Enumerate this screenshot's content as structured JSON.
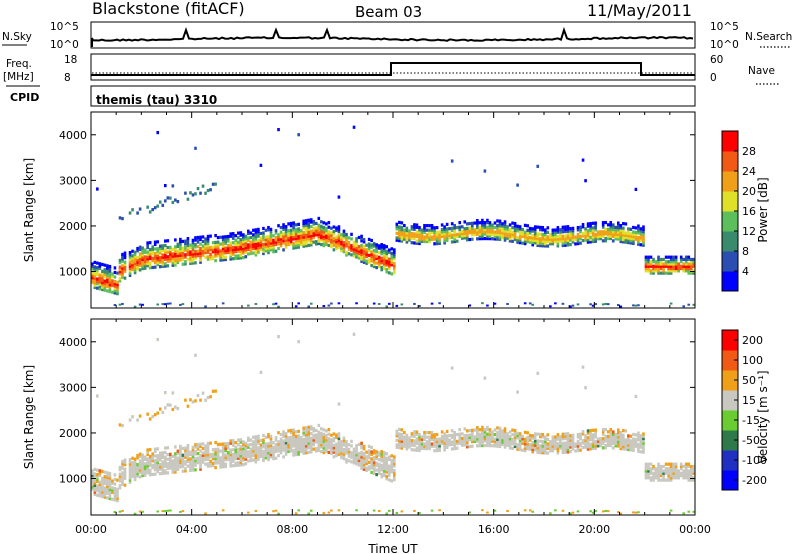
{
  "header": {
    "station": "Blackstone (fitACF)",
    "beam": "Beam 03",
    "date": "11/May/2011"
  },
  "strip_panels": {
    "nsky": {
      "label": "N.Sky",
      "tick_top": "10^5",
      "tick_bottom": "10^0"
    },
    "nsearch": {
      "label": "N.Search",
      "tick_top": "10^5",
      "tick_bottom": "10^0"
    },
    "freq": {
      "label": "Freq.",
      "unit": "[MHz]",
      "tick_top": "18",
      "tick_bottom": "8"
    },
    "nave": {
      "label": "Nave",
      "tick_top": "60",
      "tick_bottom": "0"
    },
    "cpid": {
      "label": "CPID",
      "value": "themis (tau) 3310"
    }
  },
  "chart_data": [
    {
      "type": "heatmap",
      "panel": "power",
      "xlabel": "",
      "ylabel": "Slant Range [km]",
      "xlim": [
        0,
        24
      ],
      "ylim": [
        200,
        4500
      ],
      "yticks": [
        "1000",
        "2000",
        "3000",
        "4000"
      ],
      "grid": false,
      "colorbar": {
        "label": "Power [dB]",
        "ticks": [
          "4",
          "8",
          "12",
          "16",
          "20",
          "24",
          "28"
        ],
        "colors": [
          "#0000ff",
          "#2b4fb0",
          "#3a8a6e",
          "#5cbf5c",
          "#e0e02a",
          "#f0a018",
          "#f05a14",
          "#ff0000"
        ]
      }
    },
    {
      "type": "heatmap",
      "panel": "velocity",
      "xlabel": "Time UT",
      "ylabel": "Slant Range [km]",
      "xlim": [
        0,
        24
      ],
      "ylim": [
        200,
        4500
      ],
      "yticks": [
        "1000",
        "2000",
        "3000",
        "4000"
      ],
      "xticks": [
        "00:00",
        "04:00",
        "08:00",
        "12:00",
        "16:00",
        "20:00",
        "00:00"
      ],
      "grid": false,
      "colorbar": {
        "label": "Velocity [m s⁻¹]",
        "ticks": [
          "200",
          "100",
          "50",
          "15",
          "-15",
          "-50",
          "-100",
          "-200"
        ],
        "colors": [
          "#0000ff",
          "#2030c0",
          "#2e7a4a",
          "#6acc30",
          "#c8c8c0",
          "#f0a018",
          "#f05a14",
          "#ff0000"
        ]
      }
    }
  ]
}
